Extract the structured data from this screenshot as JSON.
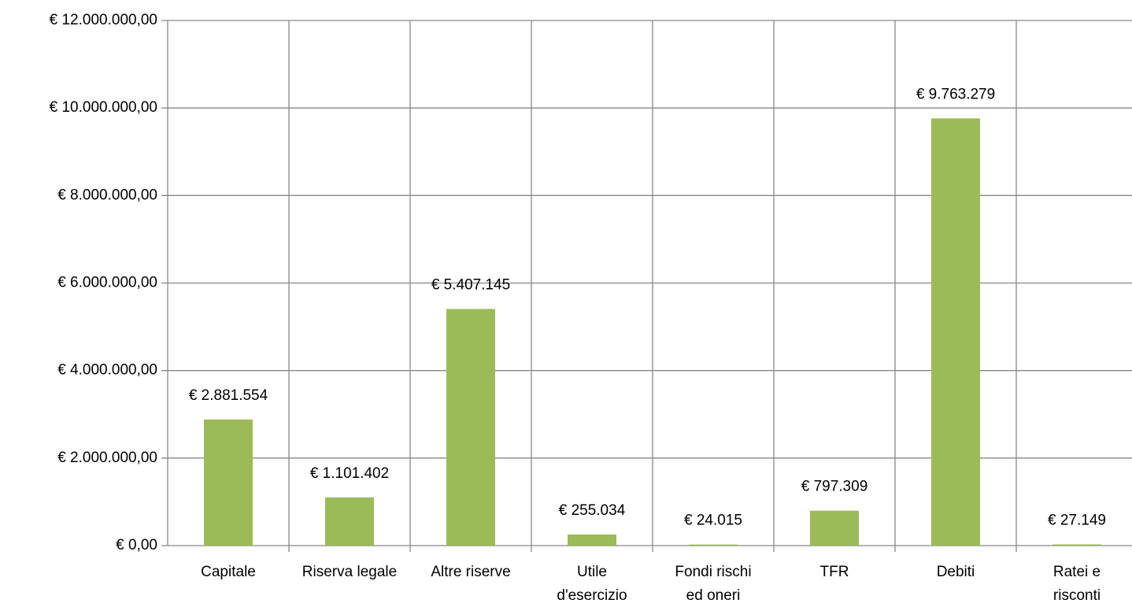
{
  "chart_data": {
    "type": "bar",
    "categories": [
      "Capitale",
      "Riserva legale",
      "Altre riserve",
      "Utile\nd'esercizio",
      "Fondi rischi\ned oneri",
      "TFR",
      "Debiti",
      "Ratei e\nrisconti"
    ],
    "values": [
      2881554,
      1101402,
      5407145,
      255034,
      24015,
      797309,
      9763279,
      27149
    ],
    "value_labels": [
      "€ 2.881.554",
      "€ 1.101.402",
      "€ 5.407.145",
      "€ 255.034",
      "€ 24.015",
      "€ 797.309",
      "€ 9.763.279",
      "€ 27.149"
    ],
    "color": "#9bbb59",
    "ylim": [
      0,
      12000000
    ],
    "yticks": [
      {
        "value": 0,
        "label": "€ 0,00"
      },
      {
        "value": 2000000,
        "label": "€ 2.000.000,00"
      },
      {
        "value": 4000000,
        "label": "€ 4.000.000,00"
      },
      {
        "value": 6000000,
        "label": "€ 6.000.000,00"
      },
      {
        "value": 8000000,
        "label": "€ 8.000.000,00"
      },
      {
        "value": 10000000,
        "label": "€ 10.000.000,00"
      },
      {
        "value": 12000000,
        "label": "€ 12.000.000,00"
      }
    ],
    "grid": true
  }
}
